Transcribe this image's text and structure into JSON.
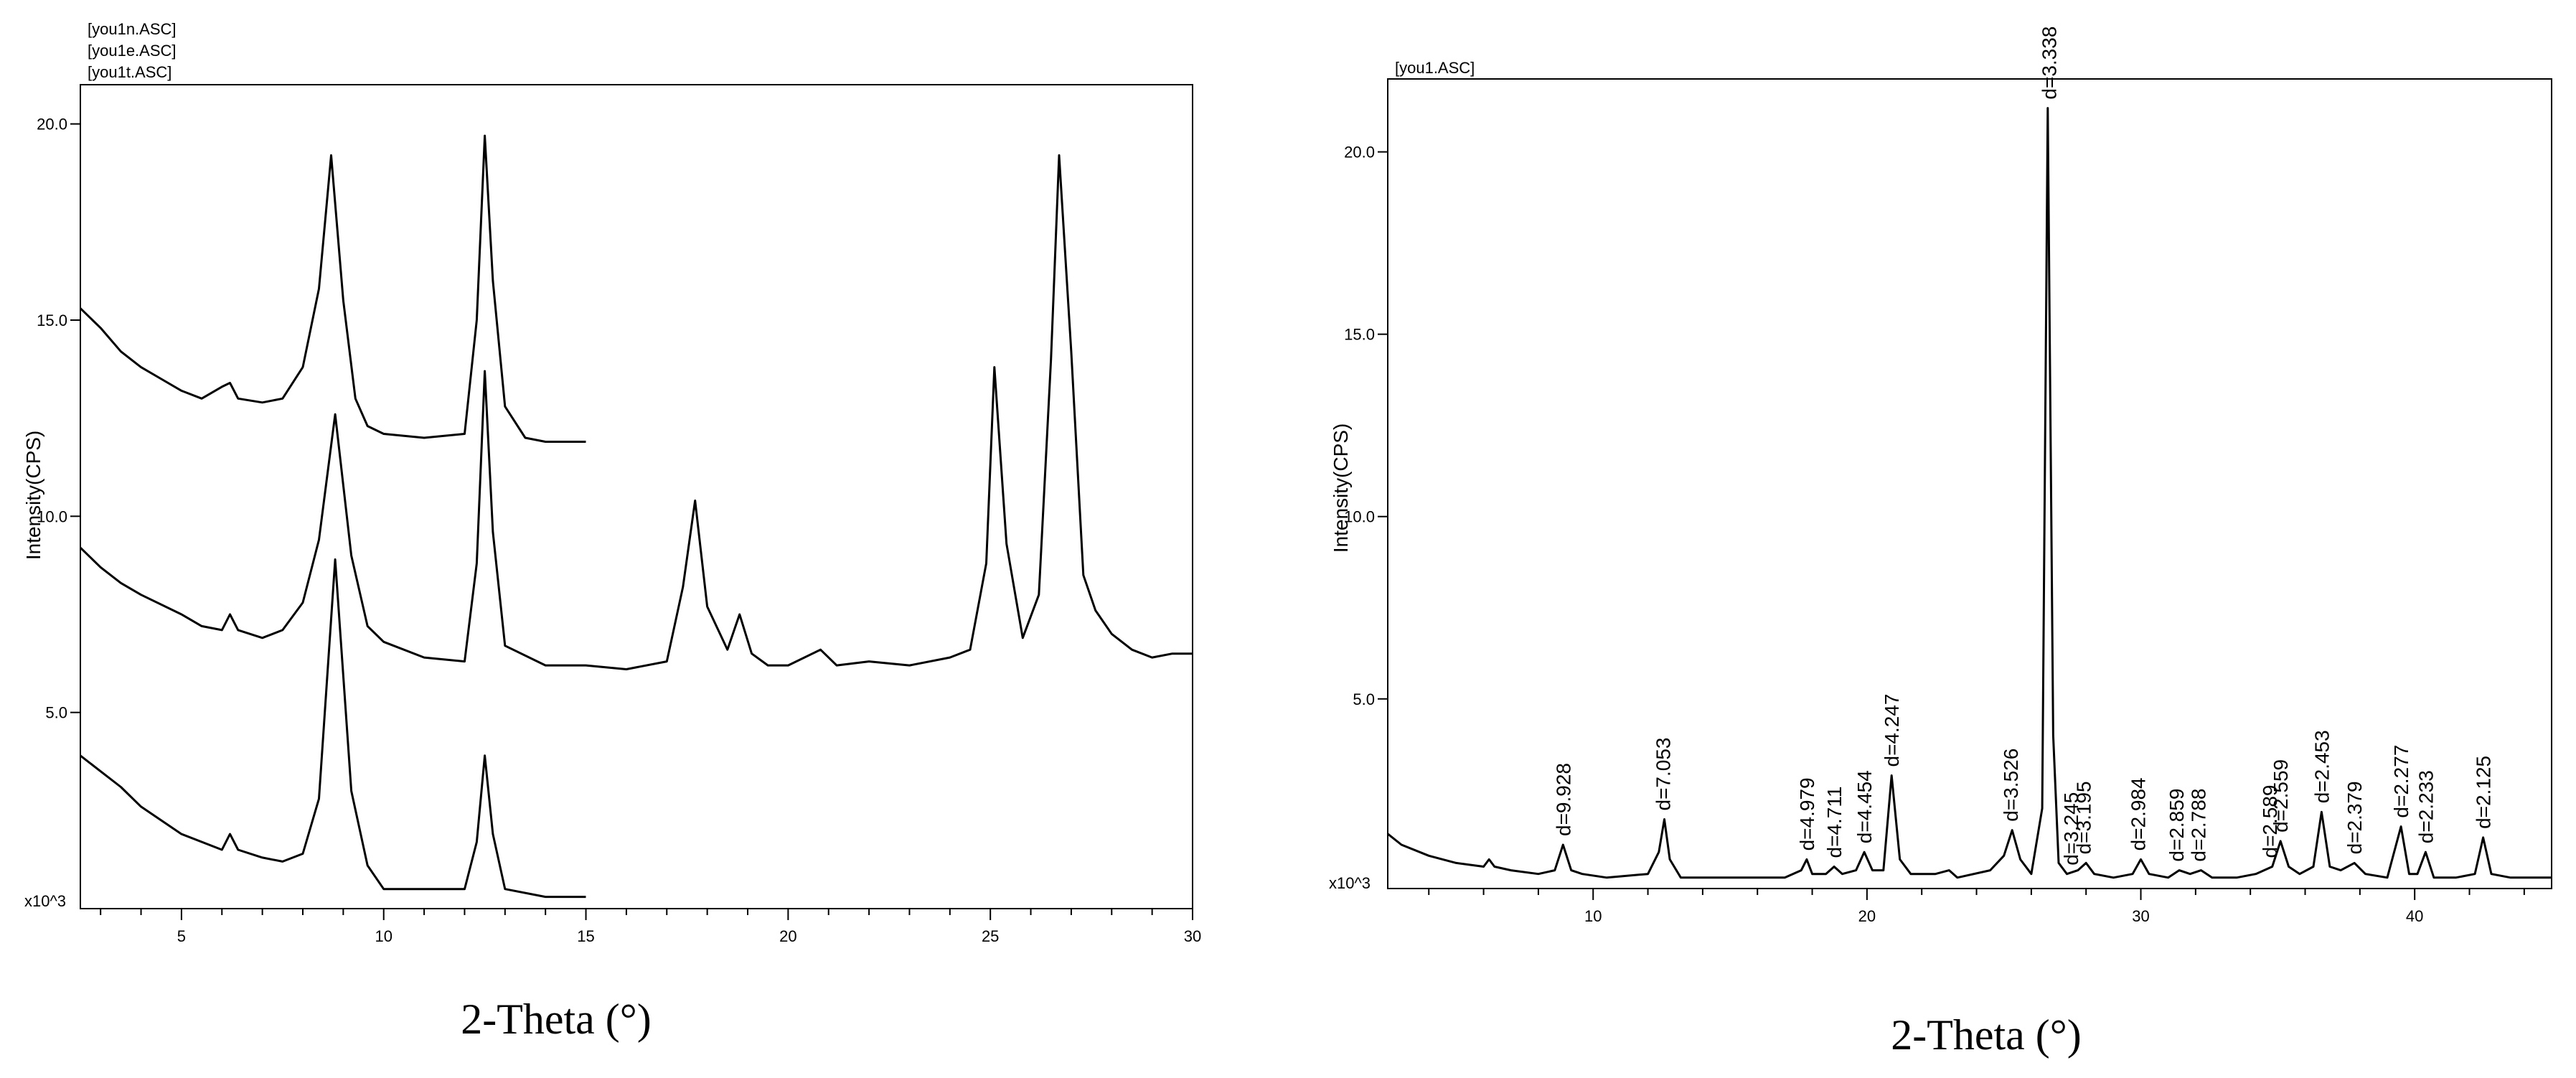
{
  "chart_data": [
    {
      "type": "line",
      "title": "",
      "legend": [
        "[you1n.ASC]",
        "[you1e.ASC]",
        "[you1t.ASC]"
      ],
      "xlabel": "2-Theta (°)",
      "ylabel": "Intensity(CPS)",
      "y_multiplier": "x10^3",
      "xlim": [
        2.5,
        30
      ],
      "ylim": [
        0,
        21
      ],
      "xticks": [
        "5",
        "10",
        "15",
        "20",
        "25",
        "30"
      ],
      "yticks": [
        "5.0",
        "10.0",
        "15.0",
        "20.0"
      ],
      "series": [
        {
          "name": "[you1n.ASC]",
          "x": [
            2.5,
            3.0,
            3.5,
            4.0,
            4.5,
            5.0,
            5.5,
            6.0,
            6.2,
            6.4,
            7.0,
            7.5,
            8.0,
            8.4,
            8.7,
            9.0,
            9.3,
            9.6,
            10.0,
            11.0,
            12.0,
            12.3,
            12.5,
            12.7,
            13.0,
            13.5,
            14.0,
            14.5,
            15.0
          ],
          "y": [
            15.3,
            14.8,
            14.2,
            13.8,
            13.5,
            13.2,
            13.0,
            13.3,
            13.4,
            13.0,
            12.9,
            13.0,
            13.8,
            15.8,
            19.2,
            15.5,
            13.0,
            12.3,
            12.1,
            12.0,
            12.1,
            15.0,
            19.7,
            16.0,
            12.8,
            12.0,
            11.9,
            11.9,
            11.9
          ]
        },
        {
          "name": "[you1e.ASC]",
          "x": [
            2.5,
            3.0,
            3.5,
            4.0,
            5.0,
            5.5,
            6.0,
            6.2,
            6.4,
            7.0,
            7.5,
            8.0,
            8.4,
            8.8,
            9.2,
            9.6,
            10.0,
            11.0,
            12.0,
            12.3,
            12.5,
            12.7,
            13.0,
            14.0,
            15.0,
            16.0,
            17.0,
            17.4,
            17.7,
            18.0,
            18.5,
            18.8,
            19.1,
            19.5,
            20.0,
            20.8,
            21.2,
            22.0,
            23.0,
            24.0,
            24.5,
            24.9,
            25.1,
            25.4,
            25.8,
            26.2,
            26.5,
            26.7,
            27.0,
            27.3,
            27.6,
            28.0,
            28.5,
            29.0,
            29.5,
            30.0
          ],
          "y": [
            9.2,
            8.7,
            8.3,
            8.0,
            7.5,
            7.2,
            7.1,
            7.5,
            7.1,
            6.9,
            7.1,
            7.8,
            9.4,
            12.6,
            9.0,
            7.2,
            6.8,
            6.4,
            6.3,
            8.8,
            13.7,
            9.6,
            6.7,
            6.2,
            6.2,
            6.1,
            6.3,
            8.2,
            10.4,
            7.7,
            6.6,
            7.5,
            6.5,
            6.2,
            6.2,
            6.6,
            6.2,
            6.3,
            6.2,
            6.4,
            6.6,
            8.8,
            13.8,
            9.3,
            6.9,
            8.0,
            14.0,
            19.2,
            14.2,
            8.5,
            7.6,
            7.0,
            6.6,
            6.4,
            6.5,
            6.5
          ]
        },
        {
          "name": "[you1t.ASC]",
          "x": [
            2.5,
            3.0,
            3.5,
            4.0,
            5.0,
            6.0,
            6.2,
            6.4,
            7.0,
            7.5,
            8.0,
            8.4,
            8.8,
            9.2,
            9.6,
            10.0,
            11.0,
            12.0,
            12.3,
            12.5,
            12.7,
            13.0,
            14.0,
            15.0
          ],
          "y": [
            3.9,
            3.5,
            3.1,
            2.6,
            1.9,
            1.5,
            1.9,
            1.5,
            1.3,
            1.2,
            1.4,
            2.8,
            8.9,
            3.0,
            1.1,
            0.5,
            0.5,
            0.5,
            1.7,
            3.9,
            1.9,
            0.5,
            0.3,
            0.3
          ]
        }
      ]
    },
    {
      "type": "line",
      "title": "",
      "legend": [
        "[you1.ASC]"
      ],
      "xlabel": "2-Theta (°)",
      "ylabel": "Intensity(CPS)",
      "y_multiplier": "x10^3",
      "xlim": [
        2.5,
        45
      ],
      "ylim": [
        -0.2,
        22
      ],
      "xticks": [
        "10",
        "20",
        "30",
        "40"
      ],
      "yticks": [
        "5.0",
        "10.0",
        "15.0",
        "20.0"
      ],
      "series": [
        {
          "name": "[you1.ASC]",
          "x": [
            2.5,
            3.0,
            4.0,
            5.0,
            6.0,
            6.2,
            6.4,
            7.0,
            8.0,
            8.6,
            8.9,
            9.2,
            9.6,
            10.5,
            12.0,
            12.4,
            12.6,
            12.8,
            13.2,
            15.0,
            17.0,
            17.6,
            17.8,
            18.0,
            18.5,
            18.8,
            19.1,
            19.6,
            19.9,
            20.2,
            20.6,
            20.9,
            21.2,
            21.6,
            22.5,
            23.0,
            23.3,
            24.5,
            25.0,
            25.3,
            25.6,
            26.0,
            26.4,
            26.6,
            26.8,
            27.0,
            27.3,
            27.7,
            28.0,
            28.3,
            29.0,
            29.7,
            30.0,
            30.3,
            31.0,
            31.4,
            31.8,
            32.2,
            32.6,
            33.5,
            34.2,
            34.8,
            35.1,
            35.4,
            35.8,
            36.3,
            36.6,
            36.9,
            37.3,
            37.8,
            38.2,
            39.0,
            39.5,
            39.8,
            40.1,
            40.4,
            40.7,
            41.5,
            42.2,
            42.5,
            42.8,
            43.5,
            44.5,
            45.0
          ],
          "y": [
            1.3,
            1.0,
            0.7,
            0.5,
            0.4,
            0.6,
            0.4,
            0.3,
            0.2,
            0.3,
            1.0,
            0.3,
            0.2,
            0.1,
            0.2,
            0.8,
            1.7,
            0.6,
            0.1,
            0.1,
            0.1,
            0.3,
            0.6,
            0.2,
            0.2,
            0.4,
            0.2,
            0.3,
            0.8,
            0.3,
            0.3,
            2.9,
            0.6,
            0.2,
            0.2,
            0.3,
            0.1,
            0.3,
            0.7,
            1.4,
            0.6,
            0.2,
            2.0,
            21.2,
            4.0,
            0.5,
            0.2,
            0.3,
            0.5,
            0.2,
            0.1,
            0.2,
            0.6,
            0.2,
            0.1,
            0.3,
            0.2,
            0.3,
            0.1,
            0.1,
            0.2,
            0.4,
            1.1,
            0.4,
            0.2,
            0.4,
            1.9,
            0.4,
            0.3,
            0.5,
            0.2,
            0.1,
            1.5,
            0.2,
            0.2,
            0.8,
            0.1,
            0.1,
            0.2,
            1.2,
            0.2,
            0.1,
            0.1,
            0.1
          ]
        }
      ],
      "peak_labels": [
        {
          "x": 8.9,
          "label": "d=9.928"
        },
        {
          "x": 12.55,
          "label": "d=7.053"
        },
        {
          "x": 17.8,
          "label": "d=4.979"
        },
        {
          "x": 18.8,
          "label": "d=4.711"
        },
        {
          "x": 19.9,
          "label": "d=4.454"
        },
        {
          "x": 20.9,
          "label": "d=4.247"
        },
        {
          "x": 25.25,
          "label": "d=3.526"
        },
        {
          "x": 26.65,
          "label": "d=3.338"
        },
        {
          "x": 27.45,
          "label": "d=3.245"
        },
        {
          "x": 27.9,
          "label": "d=3.195"
        },
        {
          "x": 29.9,
          "label": "d=2.984"
        },
        {
          "x": 31.3,
          "label": "d=2.859"
        },
        {
          "x": 32.1,
          "label": "d=2.788"
        },
        {
          "x": 34.7,
          "label": "d=2.589"
        },
        {
          "x": 35.1,
          "label": "d=2.559"
        },
        {
          "x": 36.6,
          "label": "d=2.453"
        },
        {
          "x": 37.8,
          "label": "d=2.379"
        },
        {
          "x": 39.5,
          "label": "d=2.277"
        },
        {
          "x": 40.4,
          "label": "d=2.233"
        },
        {
          "x": 42.5,
          "label": "d=2.125"
        }
      ]
    }
  ]
}
